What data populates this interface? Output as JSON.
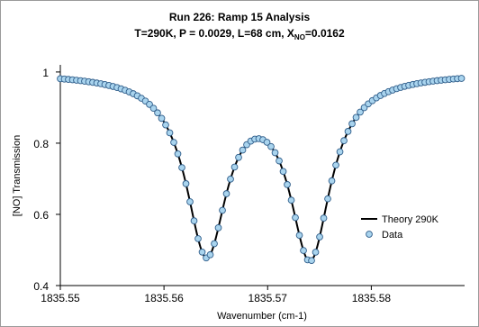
{
  "chart_data": {
    "type": "scatter",
    "title": "Run 226: Ramp 15 Analysis",
    "subtitle": {
      "main": "T=290K, P = 0.0029, L=68 cm, X",
      "subscript": "NO",
      "suffix": "=0.0162"
    },
    "xlabel": "Wavenumber (cm-1)",
    "ylabel": "[NO] Transmission",
    "xlim": [
      1835.55,
      1835.589
    ],
    "ylim": [
      0.4,
      1.02
    ],
    "x_ticks": [
      1835.55,
      1835.56,
      1835.57,
      1835.58
    ],
    "x_tick_labels": [
      "1835.55",
      "1835.56",
      "1835.57",
      "1835.58"
    ],
    "y_ticks": [
      0.4,
      0.6,
      0.8,
      1.0
    ],
    "y_tick_labels": [
      "0.4",
      "0.6",
      "0.8",
      "1"
    ],
    "grid": false,
    "legend_position": "right",
    "series": [
      {
        "name": "Theory 290K",
        "kind": "line",
        "color": "#000000",
        "model": {
          "type": "double-lorentzian-absorption",
          "baseline": 1.0,
          "peaks": [
            {
              "center": 1835.5641,
              "depth": 0.495,
              "hwhm": 0.0024
            },
            {
              "center": 1835.5741,
              "depth": 0.505,
              "hwhm": 0.0024
            }
          ],
          "x_start": 1835.55,
          "x_end": 1835.589
        }
      },
      {
        "name": "Data",
        "kind": "markers",
        "color": "#a9d4ee",
        "edge_color": "#2f5d8a",
        "x_start": 1835.55,
        "x_end": 1835.5887,
        "count": 100
      }
    ]
  }
}
